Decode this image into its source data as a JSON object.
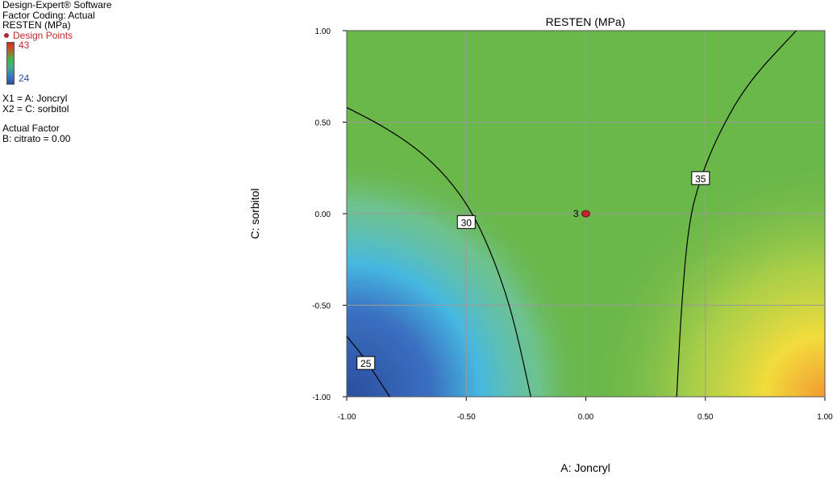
{
  "info": {
    "software": "Design-Expert® Software",
    "coding": "Factor Coding: Actual",
    "response": "RESTEN (MPa)",
    "design_points": "Design Points",
    "bar_max": "43",
    "bar_min": "24",
    "x1": "X1 = A: Joncryl",
    "x2": "X2 = C: sorbitol",
    "actual_factor": "Actual Factor",
    "actual_value": "B: citrato = 0.00"
  },
  "colors": {
    "design_point": "#c0272d",
    "high": "#e07a2a",
    "mid": "#6ab74a",
    "low": "#2f4d9e",
    "cyan": "#46b8e0"
  },
  "chart_data": {
    "type": "heatmap",
    "title": "RESTEN (MPa)",
    "xlabel": "A: Joncryl",
    "ylabel": "C: sorbitol",
    "xlim": [
      -1,
      1
    ],
    "ylim": [
      -1,
      1
    ],
    "x_ticks": [
      "-1.00",
      "-0.50",
      "0.00",
      "0.50",
      "1.00"
    ],
    "y_ticks": [
      "-1.00",
      "-0.50",
      "0.00",
      "0.50",
      "1.00"
    ],
    "grid": true,
    "contours": [
      {
        "level": "25",
        "points": [
          [
            -1.0,
            -0.67
          ],
          [
            -0.93,
            -0.78
          ],
          [
            -0.82,
            -1.0
          ]
        ],
        "label_at": [
          -0.92,
          -0.82
        ]
      },
      {
        "level": "30",
        "points": [
          [
            -1.0,
            0.58
          ],
          [
            -0.85,
            0.48
          ],
          [
            -0.7,
            0.35
          ],
          [
            -0.58,
            0.2
          ],
          [
            -0.48,
            0.02
          ],
          [
            -0.4,
            -0.2
          ],
          [
            -0.33,
            -0.45
          ],
          [
            -0.28,
            -0.7
          ],
          [
            -0.23,
            -1.0
          ]
        ],
        "label_at": [
          -0.5,
          -0.05
        ]
      },
      {
        "level": "35",
        "points": [
          [
            0.38,
            -1.0
          ],
          [
            0.4,
            -0.5
          ],
          [
            0.43,
            -0.05
          ],
          [
            0.48,
            0.2
          ],
          [
            0.56,
            0.45
          ],
          [
            0.68,
            0.72
          ],
          [
            0.88,
            1.0
          ]
        ],
        "label_at": [
          0.48,
          0.19
        ]
      }
    ],
    "design_points": [
      {
        "x": 0.0,
        "y": 0.0,
        "label": "3"
      }
    ]
  }
}
